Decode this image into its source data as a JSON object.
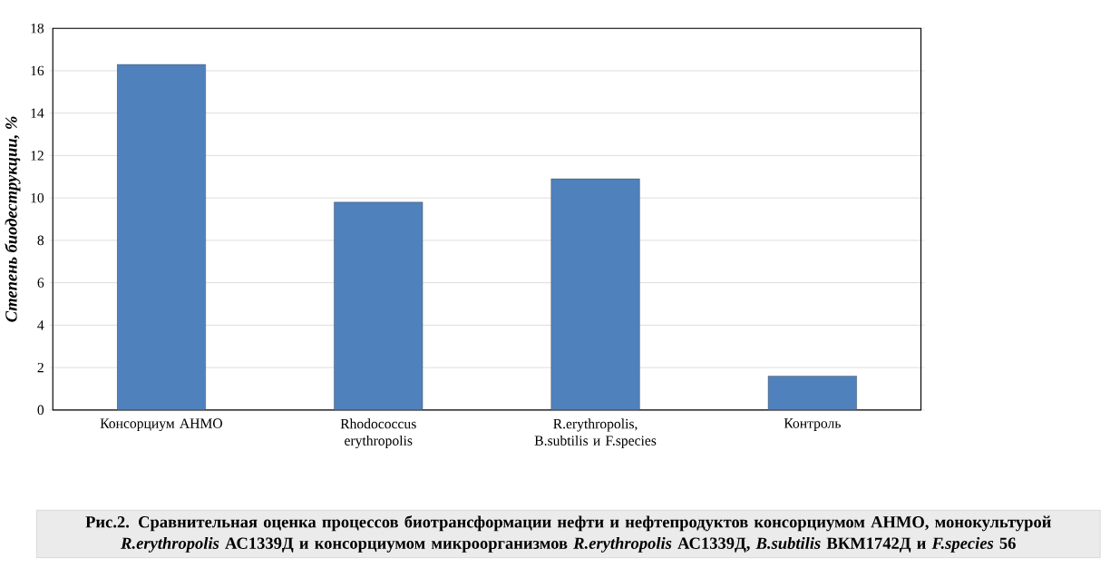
{
  "chart_data": {
    "type": "bar",
    "categories": [
      "Консорциум АНМО",
      "Rhodococcus erythropolis",
      "R.erythropolis, B.subtilis и F.species",
      "Контроль"
    ],
    "values": [
      16.3,
      9.8,
      10.9,
      1.6
    ],
    "color": "#4f81bd",
    "ylabel": "Степень биодеструкции, %",
    "ylim": [
      0,
      18
    ],
    "yticks": [
      0,
      2,
      4,
      6,
      8,
      10,
      12,
      14,
      16,
      18
    ],
    "grid": "y",
    "annotations": [
      "Рис.2. Сравнительная оценка процессов биотрансформации нефти и нефтепродуктов консорциумом АНМО, монокультурой *R.erythropolis* АС1339Д и консорциумом микроорганизмов *R.erythropolis* АС1339Д, *B.subtilis* ВКМ1742Д и *F.species* 56"
    ]
  }
}
